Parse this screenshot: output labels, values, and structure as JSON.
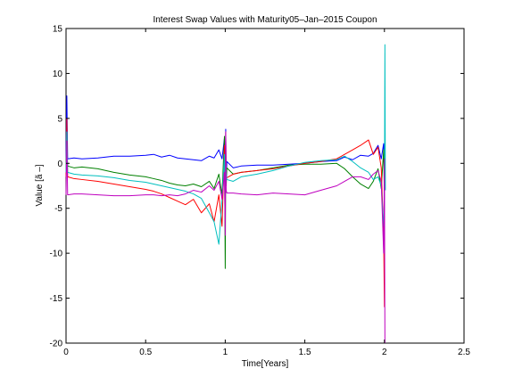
{
  "chart_data": {
    "type": "line",
    "title": "Interest Swap Values with Maturity05–Jan–2015 Coupon",
    "xlabel": "Time[Years]",
    "ylabel": "Value [ã –]",
    "xlim": [
      0,
      2.5
    ],
    "ylim": [
      -20,
      15
    ],
    "xticks": [
      "0",
      "0.5",
      "1",
      "1.5",
      "2",
      "2.5"
    ],
    "yticks": [
      "15",
      "10",
      "5",
      "0",
      "-5",
      "-10",
      "-15",
      "-20"
    ],
    "grid": false,
    "series": [
      {
        "color": "#0000ff",
        "x": [
          0,
          0.005,
          0.01,
          0.05,
          0.1,
          0.2,
          0.3,
          0.4,
          0.5,
          0.55,
          0.6,
          0.65,
          0.7,
          0.75,
          0.8,
          0.85,
          0.9,
          0.93,
          0.96,
          0.98,
          0.995,
          1.0,
          1.003,
          1.006,
          1.01,
          1.05,
          1.1,
          1.2,
          1.3,
          1.4,
          1.5,
          1.6,
          1.7,
          1.75,
          1.8,
          1.85,
          1.9,
          1.93,
          1.96,
          1.98,
          1.995,
          2.0
        ],
        "y": [
          0.5,
          7.5,
          0.5,
          0.6,
          0.5,
          0.6,
          0.8,
          0.8,
          0.9,
          1.0,
          0.7,
          0.9,
          0.6,
          0.5,
          0.4,
          0.3,
          0.8,
          0.6,
          1.5,
          0.5,
          2.8,
          -3.0,
          3.8,
          -2.0,
          0.2,
          -0.5,
          -0.3,
          -0.2,
          -0.2,
          -0.1,
          0.0,
          0.2,
          0.3,
          0.7,
          0.4,
          0.9,
          0.8,
          1.1,
          2.0,
          0.5,
          2.2,
          -1.0
        ]
      },
      {
        "color": "#008000",
        "x": [
          0,
          0.005,
          0.01,
          0.05,
          0.1,
          0.2,
          0.3,
          0.4,
          0.5,
          0.55,
          0.6,
          0.65,
          0.7,
          0.75,
          0.8,
          0.85,
          0.9,
          0.93,
          0.96,
          0.98,
          0.995,
          1.0,
          1.003,
          1.006,
          1.01,
          1.05,
          1.1,
          1.2,
          1.3,
          1.4,
          1.5,
          1.6,
          1.7,
          1.75,
          1.8,
          1.85,
          1.9,
          1.93,
          1.96,
          1.98,
          1.995,
          2.0
        ],
        "y": [
          -0.3,
          2.0,
          -0.3,
          -0.5,
          -0.4,
          -0.6,
          -1.0,
          -1.3,
          -1.5,
          -1.7,
          -1.9,
          -2.2,
          -2.4,
          -2.5,
          -2.3,
          -2.6,
          -2.0,
          -2.8,
          -1.2,
          -3.5,
          3.0,
          -11.7,
          0.0,
          -2.5,
          -0.5,
          -1.2,
          -1.0,
          -0.8,
          -0.5,
          -0.2,
          -0.1,
          -0.1,
          0.0,
          -0.6,
          -1.5,
          -2.3,
          -2.8,
          -2.0,
          -0.6,
          -2.8,
          1.5,
          -4.0
        ]
      },
      {
        "color": "#ff0000",
        "x": [
          0,
          0.005,
          0.01,
          0.05,
          0.1,
          0.2,
          0.3,
          0.4,
          0.5,
          0.55,
          0.6,
          0.65,
          0.7,
          0.75,
          0.8,
          0.85,
          0.9,
          0.93,
          0.96,
          0.98,
          0.995,
          1.0,
          1.003,
          1.006,
          1.01,
          1.05,
          1.1,
          1.2,
          1.3,
          1.4,
          1.5,
          1.6,
          1.7,
          1.75,
          1.8,
          1.85,
          1.9,
          1.93,
          1.96,
          1.98,
          1.995,
          2.0
        ],
        "y": [
          -1.5,
          5.0,
          -1.5,
          -1.7,
          -1.8,
          -2.0,
          -2.3,
          -2.6,
          -2.9,
          -3.1,
          -3.4,
          -3.8,
          -4.2,
          -4.6,
          -4.0,
          -5.5,
          -4.5,
          -6.5,
          -3.5,
          -7.0,
          2.0,
          -4.5,
          3.5,
          -1.5,
          -1.6,
          -1.2,
          -1.0,
          -0.8,
          -0.6,
          -0.3,
          0.0,
          0.2,
          0.5,
          1.0,
          1.5,
          2.0,
          2.6,
          1.0,
          1.8,
          -0.5,
          -8.0,
          -16.0
        ]
      },
      {
        "color": "#00bfbf",
        "x": [
          0,
          0.005,
          0.01,
          0.05,
          0.1,
          0.2,
          0.3,
          0.4,
          0.5,
          0.55,
          0.6,
          0.65,
          0.7,
          0.75,
          0.8,
          0.85,
          0.9,
          0.93,
          0.96,
          0.98,
          0.995,
          1.0,
          1.003,
          1.006,
          1.01,
          1.05,
          1.1,
          1.2,
          1.3,
          1.4,
          1.5,
          1.6,
          1.7,
          1.75,
          1.8,
          1.85,
          1.9,
          1.93,
          1.96,
          1.98,
          1.995,
          2.0,
          2.003,
          2.006
        ],
        "y": [
          -1.0,
          3.5,
          -1.0,
          -1.2,
          -1.3,
          -1.4,
          -1.6,
          -1.9,
          -2.1,
          -2.3,
          -2.5,
          -2.7,
          -2.9,
          -3.1,
          -3.4,
          -3.9,
          -5.5,
          -6.5,
          -9.0,
          -4.0,
          1.0,
          -5.0,
          1.5,
          -1.0,
          -1.8,
          -2.0,
          -1.5,
          -1.2,
          -0.8,
          -0.3,
          0.1,
          0.3,
          0.4,
          0.8,
          0.2,
          -0.5,
          -1.0,
          -1.8,
          -1.5,
          -2.5,
          -7.0,
          -5.0,
          13.2,
          -3.0
        ]
      },
      {
        "color": "#bf00bf",
        "x": [
          0,
          0.005,
          0.01,
          0.05,
          0.1,
          0.2,
          0.3,
          0.4,
          0.5,
          0.55,
          0.6,
          0.65,
          0.7,
          0.75,
          0.8,
          0.85,
          0.9,
          0.93,
          0.96,
          0.98,
          0.995,
          1.0,
          1.003,
          1.006,
          1.01,
          1.05,
          1.1,
          1.2,
          1.3,
          1.4,
          1.5,
          1.6,
          1.7,
          1.75,
          1.8,
          1.85,
          1.9,
          1.93,
          1.96,
          1.98,
          1.995,
          2.0,
          2.003
        ],
        "y": [
          -3.5,
          2.5,
          -3.5,
          -3.4,
          -3.4,
          -3.5,
          -3.6,
          -3.6,
          -3.5,
          -3.5,
          -3.6,
          -3.5,
          -3.6,
          -3.4,
          -3.0,
          -3.2,
          -2.5,
          -3.0,
          -2.0,
          -4.0,
          -1.0,
          -8.0,
          3.5,
          -3.0,
          -3.3,
          -3.3,
          -3.4,
          -3.5,
          -3.3,
          -3.4,
          -3.5,
          -3.0,
          -2.5,
          -2.0,
          -1.5,
          -1.5,
          -1.8,
          -1.2,
          -0.8,
          -2.0,
          -10.0,
          0.5,
          -20.0
        ]
      }
    ]
  }
}
